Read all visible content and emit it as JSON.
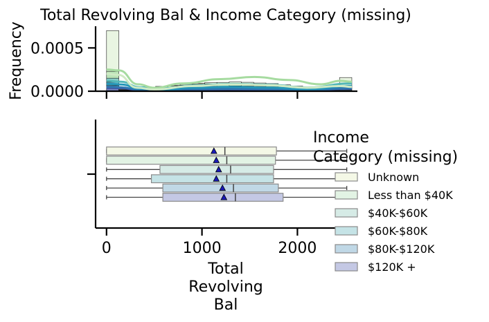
{
  "chart_data": {
    "title": "Total Revolving Bal & Income Category (missing)",
    "hist": {
      "type": "bar",
      "ylabel": "Frequency",
      "ylim": [
        0,
        0.00075
      ],
      "yticks": [
        0.0,
        0.0005
      ],
      "ytick_labels": [
        "0.0000",
        "0.0005"
      ],
      "bin_edges": [
        0,
        128.5,
        257,
        385.5,
        514,
        642.5,
        771,
        899.5,
        1028,
        1156.5,
        1285,
        1413.5,
        1542,
        1670.5,
        1799,
        1927.5,
        2056,
        2184.5,
        2313,
        2441.5,
        2570
      ],
      "stacked_series": [
        {
          "name": "$120K +",
          "color": "#4a5aa8",
          "values": [
            3e-05,
            4e-06,
            4e-06,
            6e-06,
            7e-06,
            9e-06,
            1e-05,
            1.2e-05,
            1.2e-05,
            1.2e-05,
            1.3e-05,
            1.3e-05,
            1.2e-05,
            1.1e-05,
            9e-06,
            7e-06,
            6e-06,
            5e-06,
            5e-06,
            8e-06
          ]
        },
        {
          "name": "$80K - $120K",
          "color": "#3b83b5",
          "values": [
            3.5e-05,
            4e-06,
            5e-06,
            6e-06,
            8e-06,
            1e-05,
            1.1e-05,
            1.3e-05,
            1.3e-05,
            1.4e-05,
            1.4e-05,
            1.4e-05,
            1.3e-05,
            1.2e-05,
            1e-05,
            8e-06,
            6e-06,
            6e-06,
            6e-06,
            9e-06
          ]
        },
        {
          "name": "$60K - $80K",
          "color": "#2a9fb8",
          "values": [
            4e-05,
            4e-06,
            5e-06,
            7e-06,
            9e-06,
            1.1e-05,
            1.2e-05,
            1.4e-05,
            1.5e-05,
            1.5e-05,
            1.6e-05,
            1.5e-05,
            1.4e-05,
            1.3e-05,
            1.1e-05,
            9e-06,
            7e-06,
            7e-06,
            7e-06,
            1e-05
          ]
        },
        {
          "name": "$40K - $60K",
          "color": "#5fbcb5",
          "values": [
            4.5e-05,
            5e-06,
            6e-06,
            8e-06,
            1e-05,
            1.2e-05,
            1.4e-05,
            1.6e-05,
            1.7e-05,
            1.7e-05,
            1.8e-05,
            1.7e-05,
            1.6e-05,
            1.5e-05,
            1.3e-05,
            1e-05,
            8e-06,
            8e-06,
            8e-06,
            1.2e-05
          ]
        },
        {
          "name": "Less than $40K",
          "color": "#a6dba0",
          "values": [
            8e-05,
            8e-06,
            1e-05,
            1.3e-05,
            1.6e-05,
            2e-05,
            2.3e-05,
            2.6e-05,
            2.8e-05,
            2.9e-05,
            3e-05,
            2.9e-05,
            2.7e-05,
            2.5e-05,
            2.1e-05,
            1.7e-05,
            1.4e-05,
            1.4e-05,
            1.4e-05,
            2.5e-05
          ]
        },
        {
          "name": "Unknown",
          "color": "#e2f2d8",
          "values": [
            0.00047,
            2e-06,
            3e-06,
            4e-06,
            6e-06,
            8e-06,
            1e-05,
            1.2e-05,
            1.4e-05,
            1.5e-05,
            1.6e-05,
            1.5e-05,
            1.3e-05,
            1.2e-05,
            1e-05,
            8e-06,
            6e-06,
            6e-06,
            6e-06,
            9.4e-05
          ]
        }
      ],
      "kde_series": [
        {
          "name": "$120K +",
          "color": "#3f51a3",
          "points": [
            [
              0,
              4e-05
            ],
            [
              150,
              3.6e-05
            ],
            [
              350,
              1.2e-05
            ],
            [
              600,
              1e-05
            ],
            [
              900,
              1.8e-05
            ],
            [
              1300,
              2.2e-05
            ],
            [
              1700,
              1.8e-05
            ],
            [
              2100,
              1e-05
            ],
            [
              2570,
              3e-05
            ]
          ]
        },
        {
          "name": "$80K - $120K",
          "color": "#2f76b0",
          "points": [
            [
              0,
              5e-05
            ],
            [
              150,
              4.5e-05
            ],
            [
              350,
              1.6e-05
            ],
            [
              600,
              1.4e-05
            ],
            [
              900,
              2.4e-05
            ],
            [
              1300,
              2.8e-05
            ],
            [
              1700,
              2.4e-05
            ],
            [
              2100,
              1.3e-05
            ],
            [
              2570,
              3.4e-05
            ]
          ]
        },
        {
          "name": "$60K - $80K",
          "color": "#2596b8",
          "points": [
            [
              0,
              8.5e-05
            ],
            [
              150,
              7.8e-05
            ],
            [
              350,
              3e-05
            ],
            [
              600,
              2e-05
            ],
            [
              900,
              4e-05
            ],
            [
              1300,
              5e-05
            ],
            [
              1700,
              4.2e-05
            ],
            [
              2100,
              2.4e-05
            ],
            [
              2570,
              6e-05
            ]
          ]
        },
        {
          "name": "$40K - $60K",
          "color": "#52b7b8",
          "points": [
            [
              0,
              0.00012
            ],
            [
              150,
              0.00011
            ],
            [
              350,
              4.5e-05
            ],
            [
              600,
              3.5e-05
            ],
            [
              900,
              6.5e-05
            ],
            [
              1300,
              8.5e-05
            ],
            [
              1700,
              7.5e-05
            ],
            [
              2100,
              4.2e-05
            ],
            [
              2570,
              9e-05
            ]
          ]
        },
        {
          "name": "Less than $40K",
          "color": "#a6dba0",
          "points": [
            [
              0,
              0.00025
            ],
            [
              130,
              0.00024
            ],
            [
              330,
              8e-05
            ],
            [
              500,
              4e-05
            ],
            [
              800,
              9e-05
            ],
            [
              1200,
              0.00014
            ],
            [
              1550,
              0.000165
            ],
            [
              1900,
              0.00013
            ],
            [
              2250,
              8e-05
            ],
            [
              2450,
              0.00012
            ],
            [
              2570,
              0.00011
            ]
          ]
        },
        {
          "name": "Unknown",
          "color": "#cfeac4",
          "points": [
            [
              0,
              0.0002
            ],
            [
              120,
              0.00019
            ],
            [
              320,
              4e-05
            ],
            [
              500,
              2e-05
            ],
            [
              900,
              6e-05
            ],
            [
              1300,
              8e-05
            ],
            [
              1700,
              7e-05
            ],
            [
              2100,
              4e-05
            ],
            [
              2450,
              6e-05
            ],
            [
              2570,
              5e-05
            ]
          ]
        }
      ]
    },
    "box": {
      "type": "box",
      "xlabel": "Total Revolving Bal",
      "xlabel_lines": [
        "Total",
        "Revolving",
        "Bal"
      ],
      "xlim": [
        -120,
        2650
      ],
      "xticks": [
        0,
        1000,
        2000
      ],
      "xtick_labels": [
        "0",
        "1000",
        "2000"
      ],
      "series": [
        {
          "name": "Unknown",
          "color": "#f4f8e6",
          "min": 0,
          "q1": 0,
          "median": 1240,
          "q3": 1780,
          "max": 2517,
          "mean": 1125
        },
        {
          "name": "Less than $40K",
          "color": "#e2f3e4",
          "min": 0,
          "q1": 0,
          "median": 1260,
          "q3": 1770,
          "max": 2517,
          "mean": 1150
        },
        {
          "name": "$40K - $60K",
          "color": "#d6ebe6",
          "min": 0,
          "q1": 560,
          "median": 1300,
          "q3": 1750,
          "max": 2517,
          "mean": 1175
        },
        {
          "name": "$60K - $80K",
          "color": "#c5e3e6",
          "min": 0,
          "q1": 470,
          "median": 1260,
          "q3": 1750,
          "max": 2517,
          "mean": 1150
        },
        {
          "name": "$80K - $120K",
          "color": "#c0d8e6",
          "min": 0,
          "q1": 590,
          "median": 1330,
          "q3": 1800,
          "max": 2517,
          "mean": 1215
        },
        {
          "name": "$120K +",
          "color": "#c4c8e4",
          "min": 0,
          "q1": 590,
          "median": 1350,
          "q3": 1850,
          "max": 2517,
          "mean": 1230
        }
      ]
    },
    "legend": {
      "title_lines": [
        "Income",
        "Category (missing)"
      ],
      "placement": "right",
      "items": [
        {
          "label": "Unknown",
          "color": "#f4f8e6"
        },
        {
          "label": "Less than $40K",
          "color": "#e2f3e4"
        },
        {
          "label": "$40K-$60K",
          "color": "#d6ebe6"
        },
        {
          "label": "$60K-$80K",
          "color": "#c5e3e6"
        },
        {
          "label": "$80K-$120K",
          "color": "#c0d8e6"
        },
        {
          "label": "$120K +",
          "color": "#c4c8e4"
        }
      ]
    }
  }
}
